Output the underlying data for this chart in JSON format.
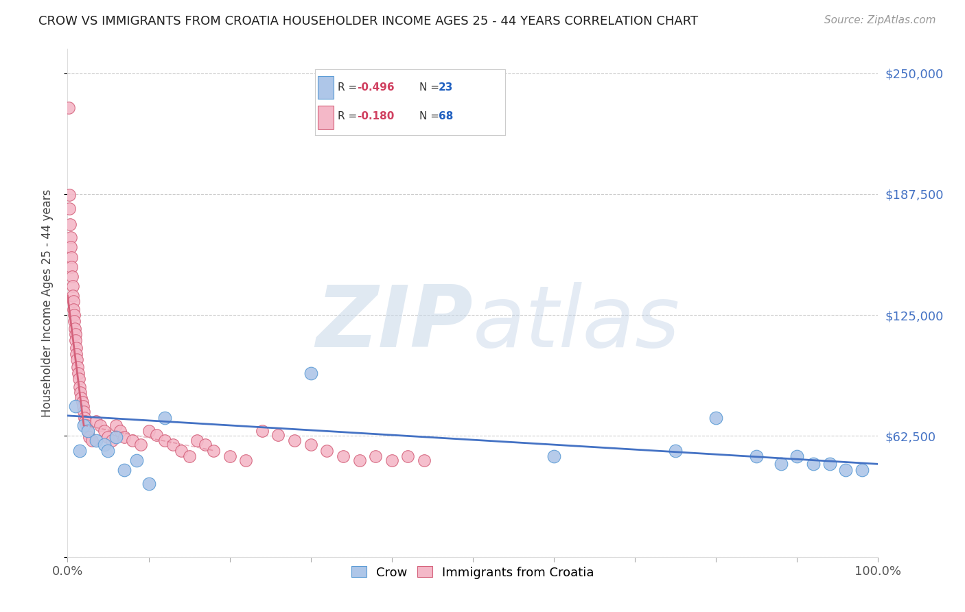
{
  "title": "CROW VS IMMIGRANTS FROM CROATIA HOUSEHOLDER INCOME AGES 25 - 44 YEARS CORRELATION CHART",
  "source": "Source: ZipAtlas.com",
  "ylabel": "Householder Income Ages 25 - 44 years",
  "xlim": [
    0,
    100
  ],
  "ylim": [
    0,
    262500
  ],
  "yticks": [
    0,
    62500,
    125000,
    187500,
    250000
  ],
  "ytick_labels": [
    "",
    "$62,500",
    "$125,000",
    "$187,500",
    "$250,000"
  ],
  "grid_color": "#cccccc",
  "background_color": "#ffffff",
  "crow_color": "#aec6e8",
  "crow_edge_color": "#5b9bd5",
  "croatia_color": "#f4b8c8",
  "croatia_edge_color": "#d4607a",
  "crow_R": "-0.496",
  "crow_N": "23",
  "croatia_R": "-0.180",
  "croatia_N": "68",
  "trend_blue_color": "#4472c4",
  "trend_pink_color": "#d4607a",
  "watermark_zip": "ZIP",
  "watermark_atlas": "atlas",
  "crow_x": [
    1.0,
    1.5,
    2.0,
    2.5,
    3.5,
    4.5,
    5.0,
    6.0,
    7.0,
    8.5,
    10.0,
    12.0,
    30.0,
    60.0,
    75.0,
    80.0,
    85.0,
    88.0,
    90.0,
    92.0,
    94.0,
    96.0,
    98.0
  ],
  "crow_y": [
    78000,
    55000,
    68000,
    65000,
    60000,
    58000,
    55000,
    62000,
    45000,
    50000,
    38000,
    72000,
    95000,
    52000,
    55000,
    72000,
    52000,
    48000,
    52000,
    48000,
    48000,
    45000,
    45000
  ],
  "croatia_x": [
    0.15,
    0.2,
    0.25,
    0.3,
    0.35,
    0.4,
    0.45,
    0.5,
    0.55,
    0.6,
    0.65,
    0.7,
    0.75,
    0.8,
    0.85,
    0.9,
    0.95,
    1.0,
    1.05,
    1.1,
    1.15,
    1.2,
    1.3,
    1.4,
    1.5,
    1.6,
    1.7,
    1.8,
    1.9,
    2.0,
    2.1,
    2.2,
    2.3,
    2.5,
    2.7,
    3.0,
    3.5,
    4.0,
    4.5,
    5.0,
    5.5,
    6.0,
    6.5,
    7.0,
    8.0,
    9.0,
    10.0,
    11.0,
    12.0,
    13.0,
    14.0,
    15.0,
    16.0,
    17.0,
    18.0,
    20.0,
    22.0,
    24.0,
    26.0,
    28.0,
    30.0,
    32.0,
    34.0,
    36.0,
    38.0,
    40.0,
    42.0,
    44.0
  ],
  "croatia_y": [
    232000,
    187000,
    180000,
    172000,
    165000,
    160000,
    155000,
    150000,
    145000,
    140000,
    135000,
    132000,
    128000,
    125000,
    122000,
    118000,
    115000,
    112000,
    108000,
    105000,
    102000,
    98000,
    95000,
    92000,
    88000,
    85000,
    82000,
    80000,
    78000,
    75000,
    72000,
    70000,
    68000,
    65000,
    62000,
    60000,
    70000,
    68000,
    65000,
    62000,
    60000,
    68000,
    65000,
    62000,
    60000,
    58000,
    65000,
    63000,
    60000,
    58000,
    55000,
    52000,
    60000,
    58000,
    55000,
    52000,
    50000,
    65000,
    63000,
    60000,
    58000,
    55000,
    52000,
    50000,
    52000,
    50000,
    52000,
    50000
  ]
}
